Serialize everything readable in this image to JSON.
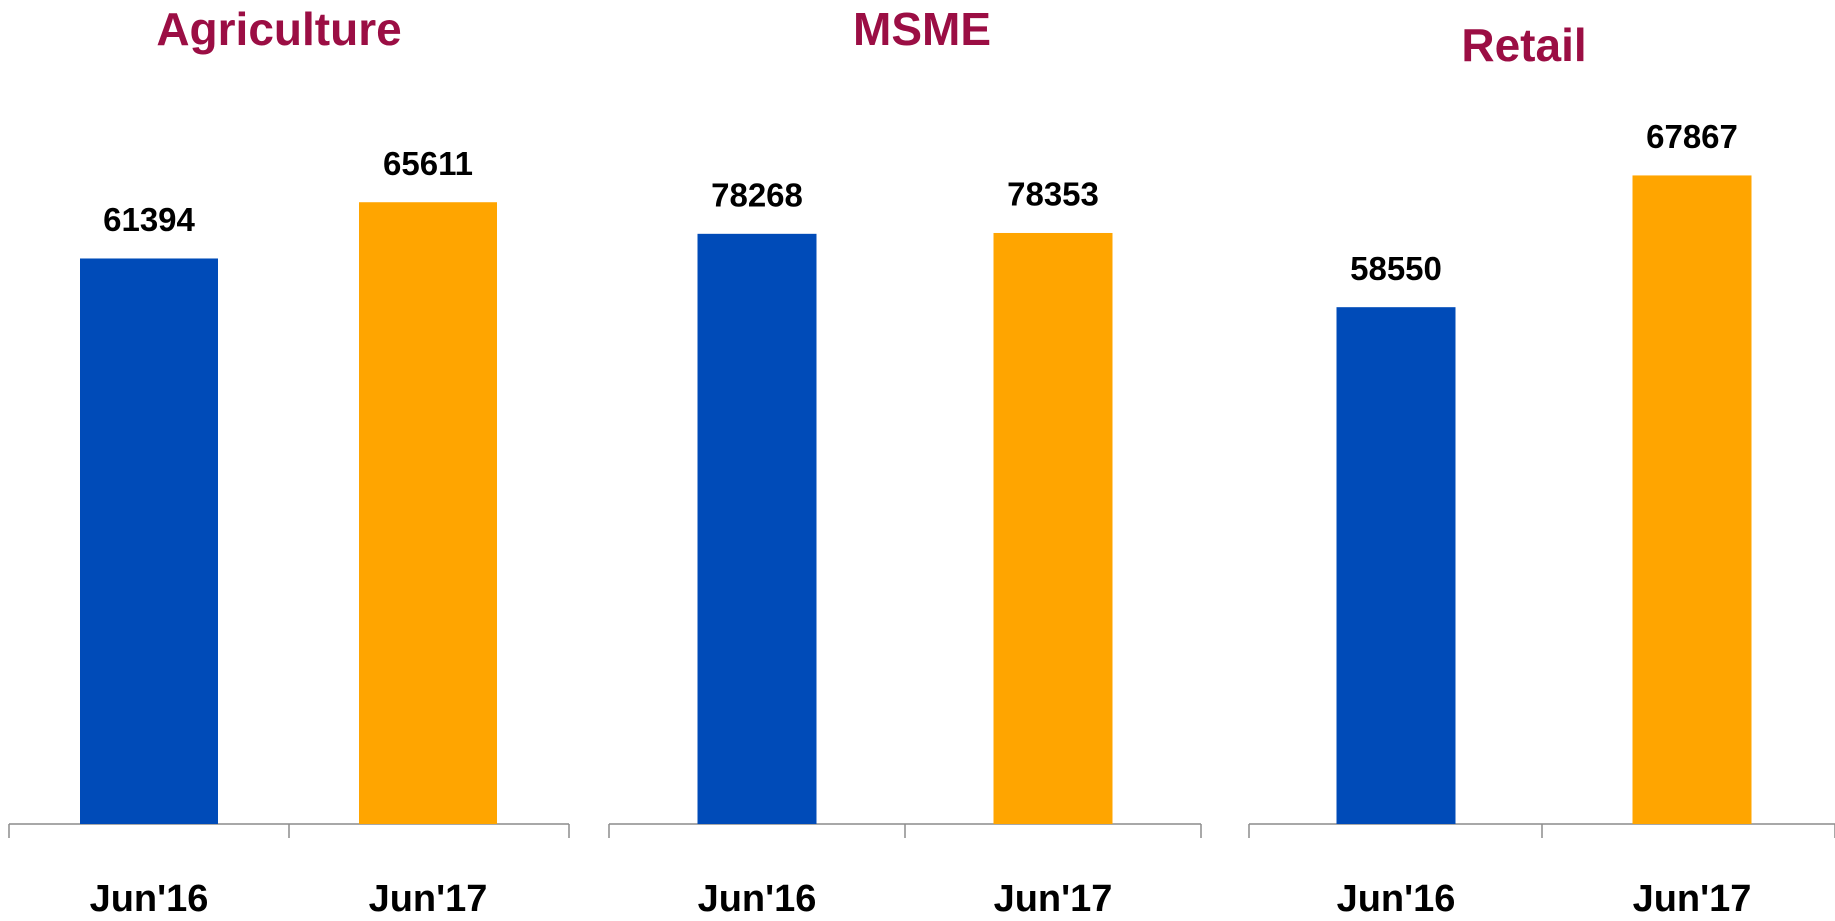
{
  "chart_data": [
    {
      "type": "bar",
      "title": "Agriculture",
      "categories": [
        "Jun'16",
        "Jun'17"
      ],
      "values": [
        61394,
        65611
      ],
      "colors": [
        "#004bb8",
        "#ffa500"
      ],
      "ylim": [
        19000,
        72000
      ]
    },
    {
      "type": "bar",
      "title": "MSME",
      "categories": [
        "Jun'16",
        "Jun'17"
      ],
      "values": [
        78268,
        78353
      ],
      "colors": [
        "#004bb8",
        "#ffa500"
      ],
      "ylim": [
        19000,
        90000
      ]
    },
    {
      "type": "bar",
      "title": "Retail",
      "categories": [
        "Jun'16",
        "Jun'17"
      ],
      "values": [
        58550,
        67867
      ],
      "colors": [
        "#004bb8",
        "#ffa500"
      ],
      "ylim": [
        22000,
        72000
      ]
    }
  ]
}
